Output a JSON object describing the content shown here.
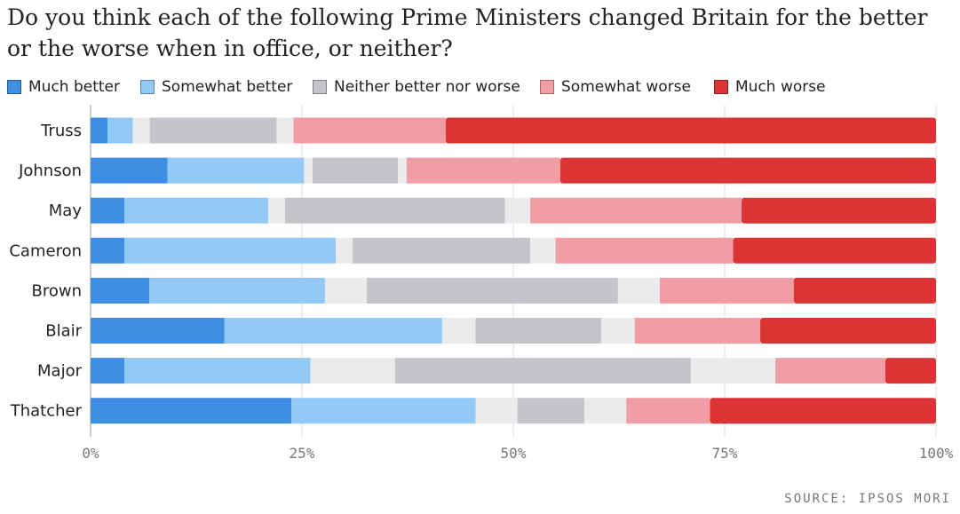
{
  "chart_data": {
    "type": "bar",
    "orientation": "horizontal",
    "stacked": true,
    "title": "Do you think each of the following Prime Ministers changed Britain for the better or the worse when in office, or neither?",
    "categories": [
      "Truss",
      "Johnson",
      "May",
      "Cameron",
      "Brown",
      "Blair",
      "Major",
      "Thatcher"
    ],
    "xlim": [
      0,
      100
    ],
    "x_ticks": [
      "0%",
      "25%",
      "50%",
      "75%",
      "100%"
    ],
    "grid": true,
    "legend_position": "top",
    "series": [
      {
        "name": "Much better",
        "color": "#3e8fe3",
        "values": [
          2,
          9,
          4,
          4,
          7,
          16,
          4,
          24
        ]
      },
      {
        "name": "",
        "color": "#ebebeb",
        "values": [
          0,
          0,
          0,
          0,
          0,
          0,
          0,
          0
        ]
      },
      {
        "name": "Somewhat better",
        "color": "#93c9f7",
        "values": [
          3,
          16,
          17,
          25,
          21,
          26,
          22,
          22
        ]
      },
      {
        "name": "",
        "color": "#ebebeb",
        "values": [
          2,
          1,
          2,
          2,
          5,
          4,
          10,
          5
        ]
      },
      {
        "name": "Neither better nor worse",
        "color": "#c3c5cb",
        "values": [
          15,
          10,
          26,
          21,
          30,
          15,
          35,
          8
        ]
      },
      {
        "name": "",
        "color": "#ebebeb",
        "values": [
          2,
          1,
          3,
          3,
          5,
          4,
          10,
          5
        ]
      },
      {
        "name": "Somewhat worse",
        "color": "#f19da5",
        "values": [
          18,
          18,
          25,
          21,
          16,
          15,
          13,
          10
        ]
      },
      {
        "name": "Much worse",
        "color": "#da3435",
        "values": [
          58,
          44,
          23,
          24,
          17,
          21,
          6,
          27
        ]
      }
    ],
    "legend": [
      {
        "label": "Much better",
        "color": "#3e8fe3"
      },
      {
        "label": "Somewhat better",
        "color": "#93c9f7"
      },
      {
        "label": "Neither better nor worse",
        "color": "#c3c5cb"
      },
      {
        "label": "Somewhat worse",
        "color": "#f19da5"
      },
      {
        "label": "Much worse",
        "color": "#da3435"
      }
    ],
    "source": "SOURCE: IPSOS MORI"
  }
}
